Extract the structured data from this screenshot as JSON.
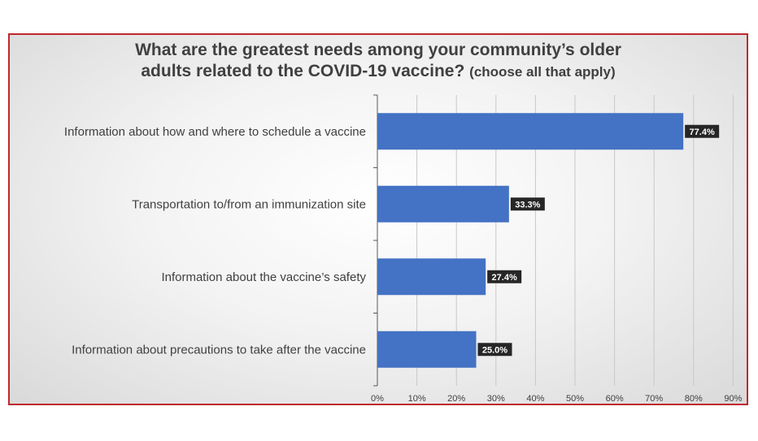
{
  "chart_data": {
    "type": "bar",
    "orientation": "horizontal",
    "title_line1": "What are the greatest needs among your community’s older",
    "title_line2": "adults related to the COVID-19 vaccine?",
    "subtitle": "(choose all that apply)",
    "categories": [
      "Information about how and where to schedule a vaccine",
      "Transportation to/from an immunization site",
      "Information about the vaccine’s safety",
      "Information about precautions to take after the vaccine"
    ],
    "values": [
      77.4,
      33.3,
      27.4,
      25.0
    ],
    "data_labels": [
      "77.4%",
      "33.3%",
      "27.4%",
      "25.0%"
    ],
    "xlim": [
      0,
      90
    ],
    "x_ticks": [
      "0%",
      "10%",
      "20%",
      "30%",
      "40%",
      "50%",
      "60%",
      "70%",
      "80%",
      "90%"
    ],
    "grid": "vertical",
    "legend": "none",
    "colors": {
      "bar": "#4472c4",
      "label_bg": "#262626",
      "label_text": "#ffffff",
      "frame_border": "#c0282d",
      "text": "#404040",
      "grid": "#c8c8c8"
    }
  }
}
